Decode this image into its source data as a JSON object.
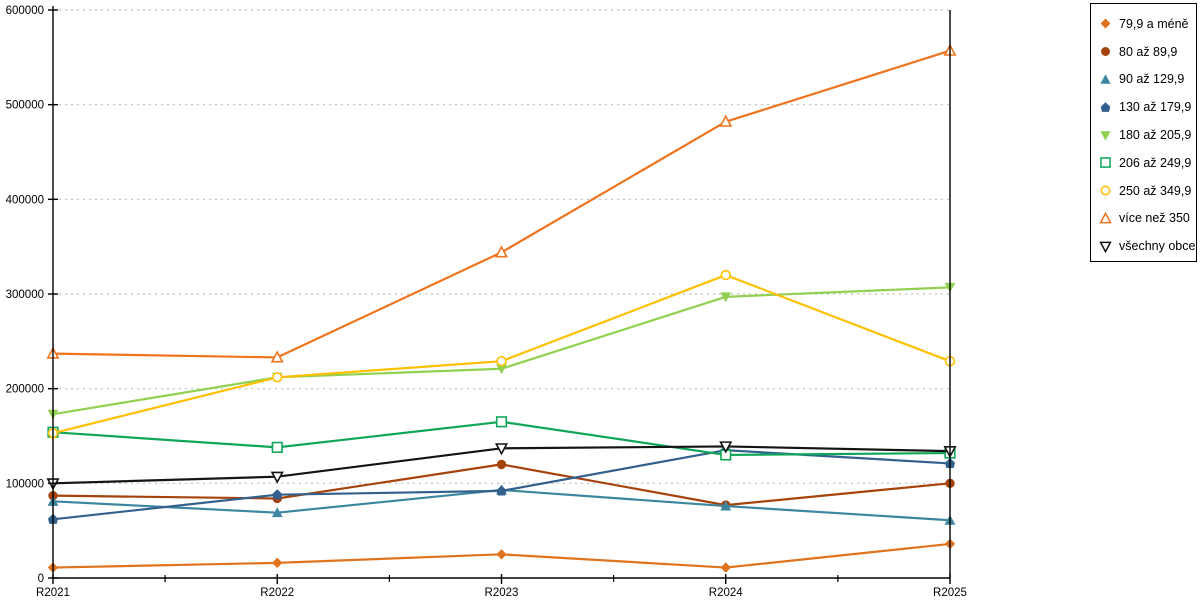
{
  "chart_data": {
    "type": "line",
    "title": "",
    "xlabel": "",
    "ylabel": "",
    "categories": [
      "R2021",
      "R2022",
      "R2023",
      "R2024",
      "R2025"
    ],
    "yticks_labels": [
      "0",
      "100000",
      "200000",
      "300000",
      "400000",
      "500000",
      "600000"
    ],
    "ylim": [
      0,
      600000
    ],
    "ytick_step": 100000,
    "grid": "horizontal-dotted",
    "legend_position": "top-right",
    "series": [
      {
        "name": "79,9 a méně",
        "marker": "diamond-filled",
        "color": "#E0731D",
        "values": [
          11000,
          16000,
          25000,
          11000,
          36000
        ]
      },
      {
        "name": "80 až 89,9",
        "marker": "circle-filled",
        "color": "#A6430C",
        "values": [
          87000,
          84000,
          120000,
          77000,
          100000
        ]
      },
      {
        "name": "90 až 129,9",
        "marker": "triangle-up-filled",
        "color": "#3C86A0",
        "values": [
          81000,
          69000,
          93000,
          76000,
          61000
        ]
      },
      {
        "name": "130 až 179,9",
        "marker": "pentagon-filled",
        "color": "#33608C",
        "values": [
          62000,
          88000,
          92000,
          135000,
          121000
        ]
      },
      {
        "name": "180 až 205,9",
        "marker": "triangle-down-filled",
        "color": "#92D050",
        "values": [
          173000,
          212000,
          221000,
          297000,
          307000
        ]
      },
      {
        "name": "206 až 249,9",
        "marker": "square-hollow",
        "color": "#10A65A",
        "values": [
          154000,
          138000,
          165000,
          130000,
          132000
        ]
      },
      {
        "name": "250 až 349,9",
        "marker": "circle-hollow",
        "color": "#FFC000",
        "values": [
          153000,
          212000,
          229000,
          320000,
          229000
        ]
      },
      {
        "name": "více než 350",
        "marker": "triangle-up-hollow",
        "color": "#F0731D",
        "values": [
          237000,
          233000,
          344000,
          482000,
          557000
        ]
      },
      {
        "name": "všechny obce",
        "marker": "triangle-down-hollow",
        "color": "#141414",
        "values": [
          100000,
          107000,
          137000,
          139000,
          134000
        ]
      }
    ]
  },
  "colors": {
    "background": "#FFFFFF",
    "grid": "#BDBDBD",
    "axis": "#000000"
  }
}
